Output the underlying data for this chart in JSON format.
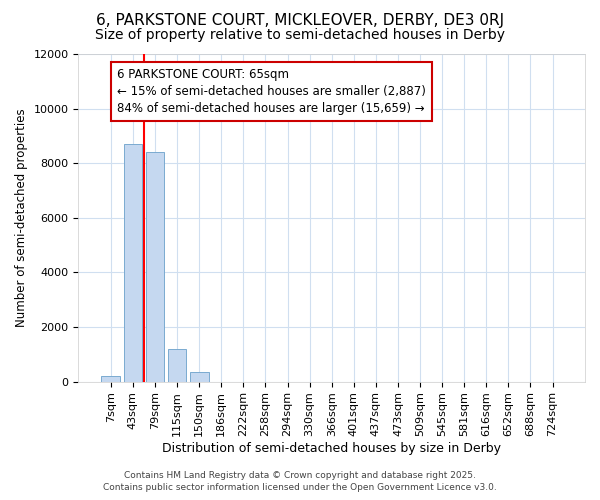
{
  "title": "6, PARKSTONE COURT, MICKLEOVER, DERBY, DE3 0RJ",
  "subtitle": "Size of property relative to semi-detached houses in Derby",
  "xlabel": "Distribution of semi-detached houses by size in Derby",
  "ylabel": "Number of semi-detached properties",
  "annotation_title": "6 PARKSTONE COURT: 65sqm",
  "annotation_line1": "← 15% of semi-detached houses are smaller (2,887)",
  "annotation_line2": "84% of semi-detached houses are larger (15,659) →",
  "footer_line1": "Contains HM Land Registry data © Crown copyright and database right 2025.",
  "footer_line2": "Contains public sector information licensed under the Open Government Licence v3.0.",
  "bar_labels": [
    "7sqm",
    "43sqm",
    "79sqm",
    "115sqm",
    "150sqm",
    "186sqm",
    "222sqm",
    "258sqm",
    "294sqm",
    "330sqm",
    "366sqm",
    "401sqm",
    "437sqm",
    "473sqm",
    "509sqm",
    "545sqm",
    "581sqm",
    "616sqm",
    "652sqm",
    "688sqm",
    "724sqm"
  ],
  "bar_values": [
    200,
    8700,
    8400,
    1200,
    350,
    0,
    0,
    0,
    0,
    0,
    0,
    0,
    0,
    0,
    0,
    0,
    0,
    0,
    0,
    0,
    0
  ],
  "bar_color": "#c5d8f0",
  "bar_edge_color": "#7aaad0",
  "red_line_x": 1.5,
  "ylim": [
    0,
    12000
  ],
  "yticks": [
    0,
    2000,
    4000,
    6000,
    8000,
    10000,
    12000
  ],
  "title_fontsize": 11,
  "subtitle_fontsize": 10,
  "xlabel_fontsize": 9,
  "ylabel_fontsize": 8.5,
  "tick_fontsize": 8,
  "annotation_fontsize": 8.5,
  "footer_fontsize": 6.5,
  "bg_color": "#ffffff",
  "plot_bg_color": "#ffffff",
  "grid_color": "#d0dff0",
  "annotation_box_facecolor": "#ffffff",
  "annotation_box_edgecolor": "#cc0000"
}
